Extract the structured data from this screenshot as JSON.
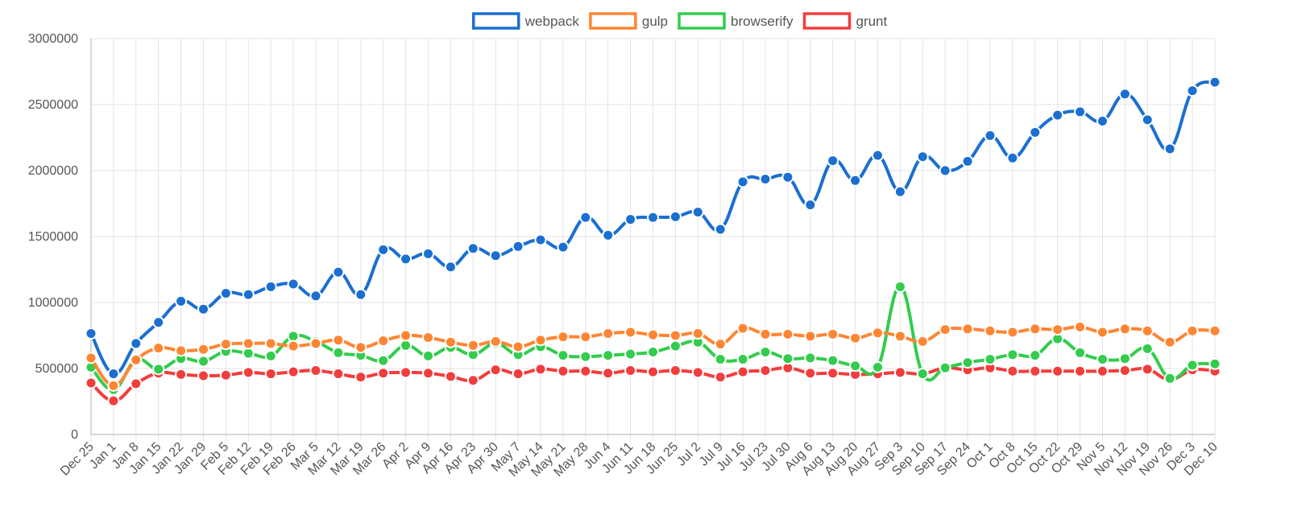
{
  "chart_data": {
    "type": "line",
    "title": "",
    "xlabel": "",
    "ylabel": "",
    "ylim": [
      0,
      3000000
    ],
    "yticks": [
      0,
      500000,
      1000000,
      1500000,
      2000000,
      2500000,
      3000000
    ],
    "grid": true,
    "legend_position": "top-center",
    "categories": [
      "Dec 25",
      "Jan 1",
      "Jan 8",
      "Jan 15",
      "Jan 22",
      "Jan 29",
      "Feb 5",
      "Feb 12",
      "Feb 19",
      "Feb 26",
      "Mar 5",
      "Mar 12",
      "Mar 19",
      "Mar 26",
      "Apr 2",
      "Apr 9",
      "Apr 16",
      "Apr 23",
      "Apr 30",
      "May 7",
      "May 14",
      "May 21",
      "May 28",
      "Jun 4",
      "Jun 11",
      "Jun 18",
      "Jun 25",
      "Jul 2",
      "Jul 9",
      "Jul 16",
      "Jul 23",
      "Jul 30",
      "Aug 6",
      "Aug 13",
      "Aug 20",
      "Aug 27",
      "Sep 3",
      "Sep 10",
      "Sep 17",
      "Sep 24",
      "Oct 1",
      "Oct 8",
      "Oct 15",
      "Oct 22",
      "Oct 29",
      "Nov 5",
      "Nov 12",
      "Nov 19",
      "Nov 26",
      "Dec 3",
      "Dec 10"
    ],
    "series": [
      {
        "name": "webpack",
        "color": "#1b6fd1",
        "values": [
          765000,
          460000,
          690000,
          850000,
          1010000,
          950000,
          1070000,
          1060000,
          1120000,
          1140000,
          1050000,
          1230000,
          1060000,
          1400000,
          1330000,
          1370000,
          1270000,
          1410000,
          1355000,
          1425000,
          1475000,
          1420000,
          1645000,
          1510000,
          1630000,
          1645000,
          1650000,
          1685000,
          1555000,
          1915000,
          1935000,
          1950000,
          1740000,
          2075000,
          1925000,
          2115000,
          1840000,
          2105000,
          2000000,
          2070000,
          2265000,
          2095000,
          2290000,
          2420000,
          2445000,
          2375000,
          2580000,
          2385000,
          2165000,
          2605000,
          2670000
        ]
      },
      {
        "name": "gulp",
        "color": "#ff8533",
        "values": [
          580000,
          370000,
          565000,
          655000,
          635000,
          645000,
          685000,
          690000,
          690000,
          670000,
          690000,
          715000,
          660000,
          710000,
          750000,
          735000,
          700000,
          675000,
          705000,
          665000,
          715000,
          740000,
          740000,
          765000,
          775000,
          755000,
          750000,
          765000,
          685000,
          805000,
          760000,
          760000,
          745000,
          760000,
          730000,
          770000,
          745000,
          705000,
          795000,
          800000,
          785000,
          775000,
          800000,
          795000,
          815000,
          775000,
          800000,
          785000,
          700000,
          785000,
          785000
        ]
      },
      {
        "name": "browserify",
        "color": "#33cc4d",
        "values": [
          510000,
          340000,
          565000,
          495000,
          575000,
          555000,
          630000,
          615000,
          595000,
          745000,
          705000,
          620000,
          600000,
          560000,
          675000,
          595000,
          660000,
          605000,
          690000,
          605000,
          665000,
          600000,
          590000,
          600000,
          610000,
          625000,
          670000,
          700000,
          570000,
          570000,
          625000,
          575000,
          580000,
          560000,
          520000,
          510000,
          1120000,
          460000,
          505000,
          545000,
          570000,
          605000,
          600000,
          725000,
          620000,
          570000,
          575000,
          650000,
          425000,
          525000,
          535000
        ]
      },
      {
        "name": "grunt",
        "color": "#f23d3d",
        "values": [
          390000,
          255000,
          385000,
          465000,
          455000,
          445000,
          450000,
          470000,
          460000,
          475000,
          485000,
          460000,
          435000,
          465000,
          470000,
          465000,
          440000,
          410000,
          490000,
          460000,
          495000,
          480000,
          480000,
          465000,
          485000,
          475000,
          485000,
          470000,
          435000,
          475000,
          485000,
          505000,
          465000,
          465000,
          455000,
          460000,
          470000,
          460000,
          505000,
          490000,
          505000,
          480000,
          480000,
          480000,
          480000,
          480000,
          485000,
          495000,
          415000,
          490000,
          480000
        ]
      }
    ]
  }
}
